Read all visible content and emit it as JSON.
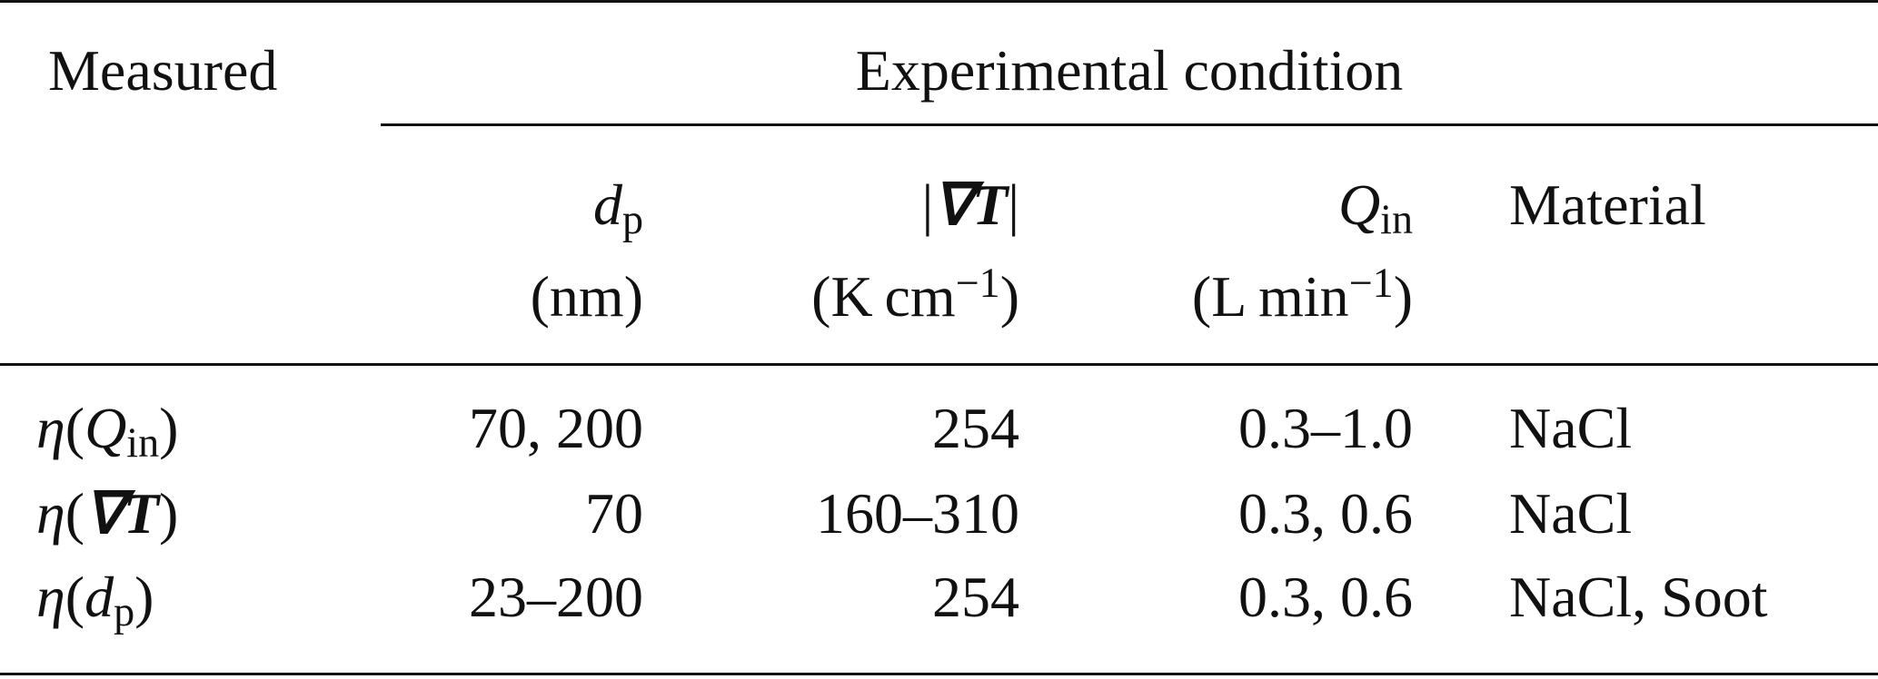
{
  "table": {
    "header": {
      "measured": "Measured",
      "group": "Experimental condition",
      "columns": [
        {
          "name": [
            {
              "text": "d",
              "style": "i"
            },
            {
              "text": "p",
              "style": "sub"
            }
          ],
          "unit": [
            {
              "text": "(nm)",
              "style": "r"
            }
          ]
        },
        {
          "name": [
            {
              "text": "|",
              "style": "r"
            },
            {
              "text": "∇T",
              "style": "b"
            },
            {
              "text": "|",
              "style": "r"
            }
          ],
          "unit": [
            {
              "text": "(K cm",
              "style": "r"
            },
            {
              "text": "−1",
              "style": "sup"
            },
            {
              "text": ")",
              "style": "r"
            }
          ]
        },
        {
          "name": [
            {
              "text": "Q",
              "style": "i"
            },
            {
              "text": "in",
              "style": "sub"
            }
          ],
          "unit": [
            {
              "text": "(L min",
              "style": "r"
            },
            {
              "text": "−1",
              "style": "sup"
            },
            {
              "text": ")",
              "style": "r"
            }
          ]
        },
        {
          "name": [
            {
              "text": "Material",
              "style": "r"
            }
          ]
        }
      ]
    },
    "rows": [
      {
        "measured": [
          {
            "text": "η",
            "style": "i"
          },
          {
            "text": "(",
            "style": "r"
          },
          {
            "text": "Q",
            "style": "i"
          },
          {
            "text": "in",
            "style": "sub"
          },
          {
            "text": ")",
            "style": "r"
          }
        ],
        "cells": [
          "70, 200",
          "254",
          "0.3–1.0",
          "NaCl"
        ]
      },
      {
        "measured": [
          {
            "text": "η",
            "style": "i"
          },
          {
            "text": "(",
            "style": "r"
          },
          {
            "text": "∇T",
            "style": "b"
          },
          {
            "text": ")",
            "style": "r"
          }
        ],
        "cells": [
          "70",
          "160–310",
          "0.3, 0.6",
          "NaCl"
        ]
      },
      {
        "measured": [
          {
            "text": "η",
            "style": "i"
          },
          {
            "text": "(",
            "style": "r"
          },
          {
            "text": "d",
            "style": "i"
          },
          {
            "text": "p",
            "style": "sub"
          },
          {
            "text": ")",
            "style": "r"
          }
        ],
        "cells": [
          "23–200",
          "254",
          "0.3, 0.6",
          "NaCl, Soot"
        ]
      }
    ]
  }
}
